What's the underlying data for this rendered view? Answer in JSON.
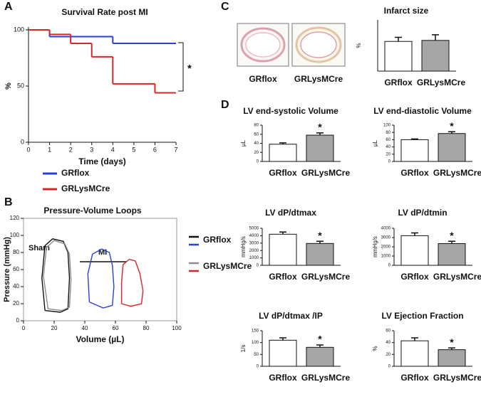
{
  "panel_labels": [
    "A",
    "B",
    "C",
    "D"
  ],
  "images": {
    "captions": [
      "GRflox",
      "GRLysMCre"
    ]
  },
  "chart_data": [
    {
      "type": "line",
      "step": true,
      "title": "Survival Rate post MI",
      "x_label": "Time (days)",
      "y_label": "%",
      "xlim": [
        0,
        7
      ],
      "xticks": [
        0,
        1,
        2,
        3,
        4,
        5,
        6,
        7
      ],
      "ylim": [
        0,
        100
      ],
      "yticks": [
        0,
        50,
        100
      ],
      "series": [
        {
          "name": "GRflox",
          "color": "#2a3fd6",
          "x": [
            0,
            1,
            4
          ],
          "values": [
            100,
            94,
            88
          ]
        },
        {
          "name": "GRLysMCre",
          "color": "#d62728",
          "x": [
            0,
            1,
            2,
            3,
            4,
            6
          ],
          "values": [
            100,
            96,
            88,
            76,
            52,
            44
          ]
        }
      ],
      "annotation": "*"
    },
    {
      "type": "line",
      "title": "Pressure-Volume Loops",
      "x_label": "Volume (µL)",
      "y_label": "Pressure (mmHg)",
      "xlim": [
        0,
        100
      ],
      "xticks": [
        0,
        20,
        40,
        60,
        80,
        100
      ],
      "ylim": [
        0,
        120
      ],
      "yticks": [
        0,
        20,
        40,
        60,
        80,
        100,
        120
      ],
      "series": [
        {
          "color": "#111111",
          "x": [
            14,
            12,
            14,
            19,
            26,
            29,
            30,
            29,
            24,
            14
          ],
          "values": [
            12,
            50,
            88,
            96,
            93,
            80,
            50,
            14,
            10,
            12
          ]
        },
        {
          "color": "#8c8c8c",
          "x": [
            16,
            13,
            15,
            20,
            27,
            30,
            31,
            30,
            25,
            16
          ],
          "values": [
            14,
            52,
            86,
            94,
            90,
            78,
            48,
            16,
            12,
            14
          ]
        },
        {
          "color": "#2a3fd6",
          "x": [
            43,
            42,
            45,
            51,
            56,
            58,
            59,
            58,
            52,
            43
          ],
          "values": [
            22,
            55,
            78,
            84,
            80,
            65,
            40,
            18,
            15,
            22
          ]
        },
        {
          "color": "#d62728",
          "x": [
            64,
            64,
            65,
            69,
            73,
            76,
            78,
            77,
            70,
            64
          ],
          "values": [
            20,
            45,
            66,
            72,
            70,
            55,
            35,
            20,
            17,
            20
          ]
        }
      ],
      "legend": [
        {
          "name": "GRflox",
          "colors": [
            "#111111",
            "#2a3fd6"
          ]
        },
        {
          "name": "GRLysMCre",
          "colors": [
            "#8c8c8c",
            "#d62728"
          ]
        }
      ],
      "annotations": [
        "Sham",
        "MI"
      ]
    },
    {
      "type": "bar",
      "title": "Infarct size",
      "y_label": "%",
      "categories": [
        "GRflox",
        "GRLysMCre"
      ],
      "values": [
        58,
        60
      ],
      "errors": [
        8,
        11
      ],
      "colors": [
        "#ffffff",
        "#a6a6a6"
      ],
      "ylim": [
        0,
        100
      ]
    },
    {
      "type": "bar",
      "title": "LV end-systolic Volume",
      "y_label": "µL",
      "categories": [
        "GRflox",
        "GRLysMCre"
      ],
      "values": [
        38,
        58
      ],
      "errors": [
        3,
        5
      ],
      "colors": [
        "#ffffff",
        "#a6a6a6"
      ],
      "ylim": [
        0,
        80
      ],
      "yticks": [
        0,
        20,
        40,
        60,
        80
      ],
      "annotation": "*"
    },
    {
      "type": "bar",
      "title": "LV end-diastolic Volume",
      "y_label": "µL",
      "categories": [
        "GRflox",
        "GRLysMCre"
      ],
      "values": [
        60,
        77
      ],
      "errors": [
        2,
        5
      ],
      "colors": [
        "#ffffff",
        "#a6a6a6"
      ],
      "ylim": [
        0,
        100
      ],
      "yticks": [
        0,
        20,
        40,
        60,
        80,
        100
      ],
      "annotation": "*"
    },
    {
      "type": "bar",
      "title": "LV dP/dtmax",
      "y_label": "mmHg/s",
      "categories": [
        "GRflox",
        "GRLysMCre"
      ],
      "values": [
        4200,
        2950
      ],
      "errors": [
        300,
        300
      ],
      "colors": [
        "#ffffff",
        "#a6a6a6"
      ],
      "ylim": [
        0,
        5000
      ],
      "yticks": [
        0,
        1000,
        2000,
        3000,
        4000,
        5000
      ],
      "annotation": "*"
    },
    {
      "type": "bar",
      "title": "LV dP/dtmin",
      "y_label": "mmHg/s",
      "categories": [
        "GRflox",
        "GRLysMCre"
      ],
      "values": [
        3200,
        2350
      ],
      "errors": [
        300,
        250
      ],
      "colors": [
        "#ffffff",
        "#a6a6a6"
      ],
      "ylim": [
        0,
        4000
      ],
      "yticks": [
        0,
        1000,
        2000,
        3000,
        4000
      ],
      "annotation": "*"
    },
    {
      "type": "bar",
      "title": "LV  dP/dtmax /IP",
      "y_label": "1/s",
      "categories": [
        "GRflox",
        "GRLysMCre"
      ],
      "values": [
        110,
        80
      ],
      "errors": [
        10,
        10
      ],
      "colors": [
        "#ffffff",
        "#a6a6a6"
      ],
      "ylim": [
        0,
        150
      ],
      "yticks": [
        0,
        50,
        100,
        150
      ],
      "annotation": "*"
    },
    {
      "type": "bar",
      "title": "LV Ejection Fraction",
      "y_label": "%",
      "categories": [
        "GRflox",
        "GRLysMCre"
      ],
      "values": [
        43,
        28
      ],
      "errors": [
        5,
        3
      ],
      "colors": [
        "#ffffff",
        "#a6a6a6"
      ],
      "ylim": [
        0,
        60
      ],
      "yticks": [
        0,
        20,
        40,
        60
      ],
      "annotation": "*"
    }
  ]
}
